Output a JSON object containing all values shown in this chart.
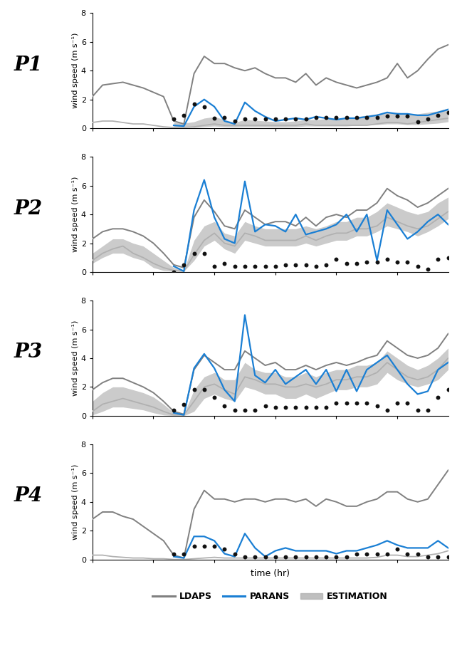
{
  "panels": [
    "P1",
    "P2",
    "P3",
    "P4"
  ],
  "xlim": [
    0,
    35
  ],
  "ylim": [
    0,
    8
  ],
  "yticks": [
    0,
    2,
    4,
    6,
    8
  ],
  "ylabel": "wind speed (m s⁻¹)",
  "xlabel": "time (hr)",
  "ldaps_color": "#808080",
  "parans_color": "#1a7fd4",
  "estimation_color": "#b0b0b0",
  "dots_color": "#111111",
  "ldaps_lw": 1.4,
  "parans_lw": 1.6,
  "t": [
    0,
    1,
    2,
    3,
    4,
    5,
    6,
    7,
    8,
    9,
    10,
    11,
    12,
    13,
    14,
    15,
    16,
    17,
    18,
    19,
    20,
    21,
    22,
    23,
    24,
    25,
    26,
    27,
    28,
    29,
    30,
    31,
    32,
    33,
    34,
    35
  ],
  "p1_ldaps": [
    2.2,
    3.0,
    3.1,
    3.2,
    3.0,
    2.8,
    2.5,
    2.2,
    0.5,
    0.3,
    3.8,
    5.0,
    4.5,
    4.5,
    4.2,
    4.0,
    4.2,
    3.8,
    3.5,
    3.5,
    3.2,
    3.8,
    3.0,
    3.5,
    3.2,
    3.0,
    2.8,
    3.0,
    3.2,
    3.5,
    4.5,
    3.5,
    4.0,
    4.8,
    5.5,
    5.8
  ],
  "p1_ldaps_low": [
    0.4,
    0.5,
    0.5,
    0.4,
    0.3,
    0.3,
    0.2,
    0.1,
    0.05,
    0.05,
    0.1,
    0.2,
    0.3,
    0.2,
    0.2,
    0.2,
    0.2,
    0.2,
    0.2,
    0.2,
    0.2,
    0.3,
    0.2,
    0.2,
    0.2,
    0.2,
    0.2,
    0.2,
    0.3,
    0.4,
    0.4,
    0.3,
    0.4,
    0.5,
    0.6,
    0.7
  ],
  "p1_parans": [
    null,
    null,
    null,
    null,
    null,
    null,
    null,
    null,
    0.2,
    0.15,
    1.5,
    2.0,
    1.5,
    0.5,
    0.3,
    1.8,
    1.2,
    0.8,
    0.5,
    0.6,
    0.7,
    0.6,
    0.8,
    0.7,
    0.6,
    0.7,
    0.7,
    0.8,
    0.9,
    1.1,
    1.0,
    1.0,
    0.9,
    0.9,
    1.1,
    1.3
  ],
  "p1_est_upper": [
    null,
    null,
    null,
    null,
    null,
    null,
    null,
    null,
    0.4,
    0.35,
    0.45,
    0.7,
    0.8,
    0.6,
    0.4,
    0.6,
    0.55,
    0.5,
    0.45,
    0.45,
    0.5,
    0.6,
    0.6,
    0.65,
    0.65,
    0.7,
    0.8,
    0.9,
    1.0,
    1.1,
    1.1,
    1.0,
    1.0,
    1.1,
    1.2,
    1.4
  ],
  "p1_est_lower": [
    null,
    null,
    null,
    null,
    null,
    null,
    null,
    null,
    0.1,
    0.1,
    0.05,
    0.1,
    0.15,
    0.1,
    0.08,
    0.1,
    0.1,
    0.1,
    0.08,
    0.08,
    0.1,
    0.15,
    0.15,
    0.15,
    0.15,
    0.15,
    0.2,
    0.25,
    0.25,
    0.3,
    0.3,
    0.25,
    0.25,
    0.3,
    0.35,
    0.45
  ],
  "p1_dots": [
    null,
    null,
    null,
    null,
    null,
    null,
    null,
    null,
    0.65,
    0.9,
    1.7,
    1.5,
    0.7,
    0.75,
    0.5,
    0.65,
    0.65,
    0.65,
    0.65,
    0.65,
    0.65,
    0.65,
    0.75,
    0.75,
    0.75,
    0.75,
    0.75,
    0.75,
    0.75,
    0.85,
    0.85,
    0.85,
    0.45,
    0.65,
    0.9,
    1.1
  ],
  "p2_ldaps": [
    2.3,
    2.8,
    3.0,
    3.0,
    2.8,
    2.5,
    2.0,
    1.3,
    0.5,
    0.3,
    3.8,
    5.0,
    4.2,
    3.2,
    3.0,
    4.3,
    3.8,
    3.3,
    3.5,
    3.5,
    3.2,
    3.8,
    3.2,
    3.8,
    4.0,
    3.8,
    4.3,
    4.3,
    4.8,
    5.8,
    5.3,
    5.0,
    4.5,
    4.8,
    5.3,
    5.8
  ],
  "p2_ldaps_low": [
    0.8,
    1.3,
    1.6,
    1.8,
    1.3,
    1.0,
    0.6,
    0.3,
    0.1,
    0.05,
    1.2,
    2.2,
    2.7,
    2.0,
    1.8,
    2.7,
    2.5,
    2.2,
    2.2,
    2.2,
    2.2,
    2.5,
    2.2,
    2.5,
    2.7,
    2.7,
    3.0,
    3.0,
    3.2,
    3.8,
    3.5,
    3.2,
    3.0,
    3.2,
    3.7,
    4.2
  ],
  "p2_parans": [
    null,
    null,
    null,
    null,
    null,
    null,
    null,
    null,
    0.4,
    0.05,
    4.3,
    6.4,
    3.8,
    2.3,
    2.0,
    6.3,
    2.8,
    3.3,
    3.2,
    2.8,
    4.0,
    2.6,
    2.8,
    3.0,
    3.3,
    4.0,
    2.8,
    4.0,
    0.8,
    4.3,
    3.3,
    2.3,
    2.8,
    3.5,
    4.0,
    3.3
  ],
  "p2_est_upper": [
    1.3,
    1.8,
    2.3,
    2.3,
    2.0,
    1.8,
    1.3,
    0.8,
    0.3,
    0.1,
    2.2,
    3.2,
    3.5,
    2.7,
    2.5,
    3.5,
    3.2,
    3.0,
    3.0,
    3.0,
    3.0,
    3.2,
    3.0,
    3.2,
    3.5,
    3.5,
    3.8,
    3.8,
    4.2,
    4.8,
    4.5,
    4.2,
    4.0,
    4.2,
    4.8,
    5.2
  ],
  "p2_est_lower": [
    0.6,
    1.0,
    1.3,
    1.3,
    1.0,
    0.8,
    0.3,
    0.1,
    0.05,
    0.05,
    0.8,
    1.8,
    2.2,
    1.6,
    1.3,
    2.2,
    2.0,
    1.8,
    1.8,
    1.8,
    1.8,
    2.0,
    1.8,
    2.0,
    2.2,
    2.2,
    2.5,
    2.5,
    2.8,
    3.2,
    3.0,
    2.8,
    2.5,
    2.8,
    3.2,
    3.7
  ],
  "p2_dots": [
    null,
    null,
    null,
    null,
    null,
    null,
    null,
    null,
    0.0,
    0.5,
    1.3,
    1.3,
    0.4,
    0.6,
    0.4,
    0.4,
    0.4,
    0.4,
    0.4,
    0.5,
    0.5,
    0.5,
    0.4,
    0.5,
    0.9,
    0.6,
    0.6,
    0.7,
    0.7,
    0.9,
    0.7,
    0.7,
    0.4,
    0.2,
    0.9,
    1.0
  ],
  "p3_ldaps": [
    1.8,
    2.3,
    2.6,
    2.6,
    2.3,
    2.0,
    1.6,
    1.0,
    0.3,
    0.1,
    3.2,
    4.2,
    3.7,
    3.2,
    3.2,
    4.5,
    4.0,
    3.5,
    3.7,
    3.2,
    3.2,
    3.5,
    3.2,
    3.5,
    3.7,
    3.5,
    3.7,
    4.0,
    4.2,
    5.2,
    4.7,
    4.2,
    4.0,
    4.2,
    4.7,
    5.7
  ],
  "p3_ldaps_low": [
    0.3,
    0.8,
    1.0,
    1.2,
    1.0,
    0.8,
    0.6,
    0.3,
    0.05,
    0.05,
    1.0,
    2.0,
    2.2,
    1.8,
    1.5,
    2.7,
    2.5,
    2.2,
    2.2,
    2.0,
    2.0,
    2.2,
    2.0,
    2.2,
    2.5,
    2.5,
    2.7,
    2.7,
    3.0,
    3.7,
    3.2,
    2.7,
    2.5,
    2.7,
    3.2,
    4.0
  ],
  "p3_parans": [
    null,
    null,
    null,
    null,
    null,
    null,
    null,
    null,
    0.2,
    0.05,
    3.3,
    4.3,
    3.3,
    1.8,
    1.0,
    7.0,
    2.8,
    2.3,
    3.2,
    2.2,
    2.7,
    3.2,
    2.2,
    3.2,
    1.7,
    3.2,
    1.7,
    3.2,
    3.7,
    4.2,
    3.2,
    2.2,
    1.5,
    1.7,
    3.2,
    3.7
  ],
  "p3_est_upper": [
    1.0,
    1.6,
    2.0,
    2.0,
    1.8,
    1.6,
    1.3,
    0.8,
    0.2,
    0.1,
    1.8,
    2.7,
    3.0,
    2.5,
    2.5,
    3.7,
    3.2,
    3.0,
    3.0,
    2.7,
    2.7,
    3.0,
    2.7,
    3.0,
    3.2,
    3.2,
    3.5,
    3.5,
    3.7,
    4.5,
    4.0,
    3.5,
    3.2,
    3.5,
    4.0,
    4.7
  ],
  "p3_est_lower": [
    0.05,
    0.3,
    0.6,
    0.6,
    0.5,
    0.4,
    0.2,
    0.05,
    0.0,
    0.0,
    0.3,
    1.2,
    1.5,
    1.2,
    1.0,
    2.0,
    1.8,
    1.5,
    1.5,
    1.2,
    1.2,
    1.5,
    1.2,
    1.5,
    1.8,
    1.8,
    2.0,
    2.0,
    2.2,
    3.0,
    2.5,
    2.2,
    2.0,
    2.2,
    2.5,
    3.2
  ],
  "p3_dots": [
    null,
    null,
    null,
    null,
    null,
    null,
    null,
    null,
    0.4,
    0.8,
    1.8,
    1.8,
    1.3,
    0.7,
    0.4,
    0.4,
    0.4,
    0.7,
    0.6,
    0.6,
    0.6,
    0.6,
    0.6,
    0.6,
    0.9,
    0.9,
    0.9,
    0.9,
    0.7,
    0.4,
    0.9,
    0.9,
    0.4,
    0.4,
    1.3,
    1.8
  ],
  "p4_ldaps": [
    2.8,
    3.3,
    3.3,
    3.0,
    2.8,
    2.3,
    1.8,
    1.3,
    0.3,
    0.1,
    3.5,
    4.8,
    4.2,
    4.2,
    4.0,
    4.2,
    4.2,
    4.0,
    4.2,
    4.2,
    4.0,
    4.2,
    3.7,
    4.2,
    4.0,
    3.7,
    3.7,
    4.0,
    4.2,
    4.7,
    4.7,
    4.2,
    4.0,
    4.2,
    5.2,
    6.2
  ],
  "p4_ldaps_low": [
    0.3,
    0.3,
    0.2,
    0.15,
    0.1,
    0.1,
    0.05,
    0.05,
    0.0,
    0.0,
    0.05,
    0.1,
    0.15,
    0.1,
    0.1,
    0.1,
    0.1,
    0.1,
    0.1,
    0.1,
    0.1,
    0.1,
    0.1,
    0.1,
    0.1,
    0.1,
    0.1,
    0.1,
    0.15,
    0.3,
    0.3,
    0.2,
    0.2,
    0.3,
    0.4,
    0.6
  ],
  "p4_parans": [
    null,
    null,
    null,
    null,
    null,
    null,
    null,
    null,
    0.2,
    0.1,
    1.6,
    1.6,
    1.3,
    0.4,
    0.2,
    1.8,
    0.8,
    0.2,
    0.6,
    0.8,
    0.6,
    0.6,
    0.6,
    0.6,
    0.4,
    0.6,
    0.6,
    0.8,
    1.0,
    1.3,
    1.0,
    0.8,
    0.8,
    0.8,
    1.3,
    0.8
  ],
  "p4_dots": [
    null,
    null,
    null,
    null,
    null,
    null,
    null,
    null,
    0.4,
    0.4,
    0.9,
    0.9,
    0.9,
    0.7,
    0.4,
    0.2,
    0.2,
    0.2,
    0.2,
    0.2,
    0.2,
    0.2,
    0.2,
    0.2,
    0.2,
    0.2,
    0.4,
    0.4,
    0.4,
    0.4,
    0.7,
    0.4,
    0.4,
    0.2,
    0.2,
    0.2
  ]
}
